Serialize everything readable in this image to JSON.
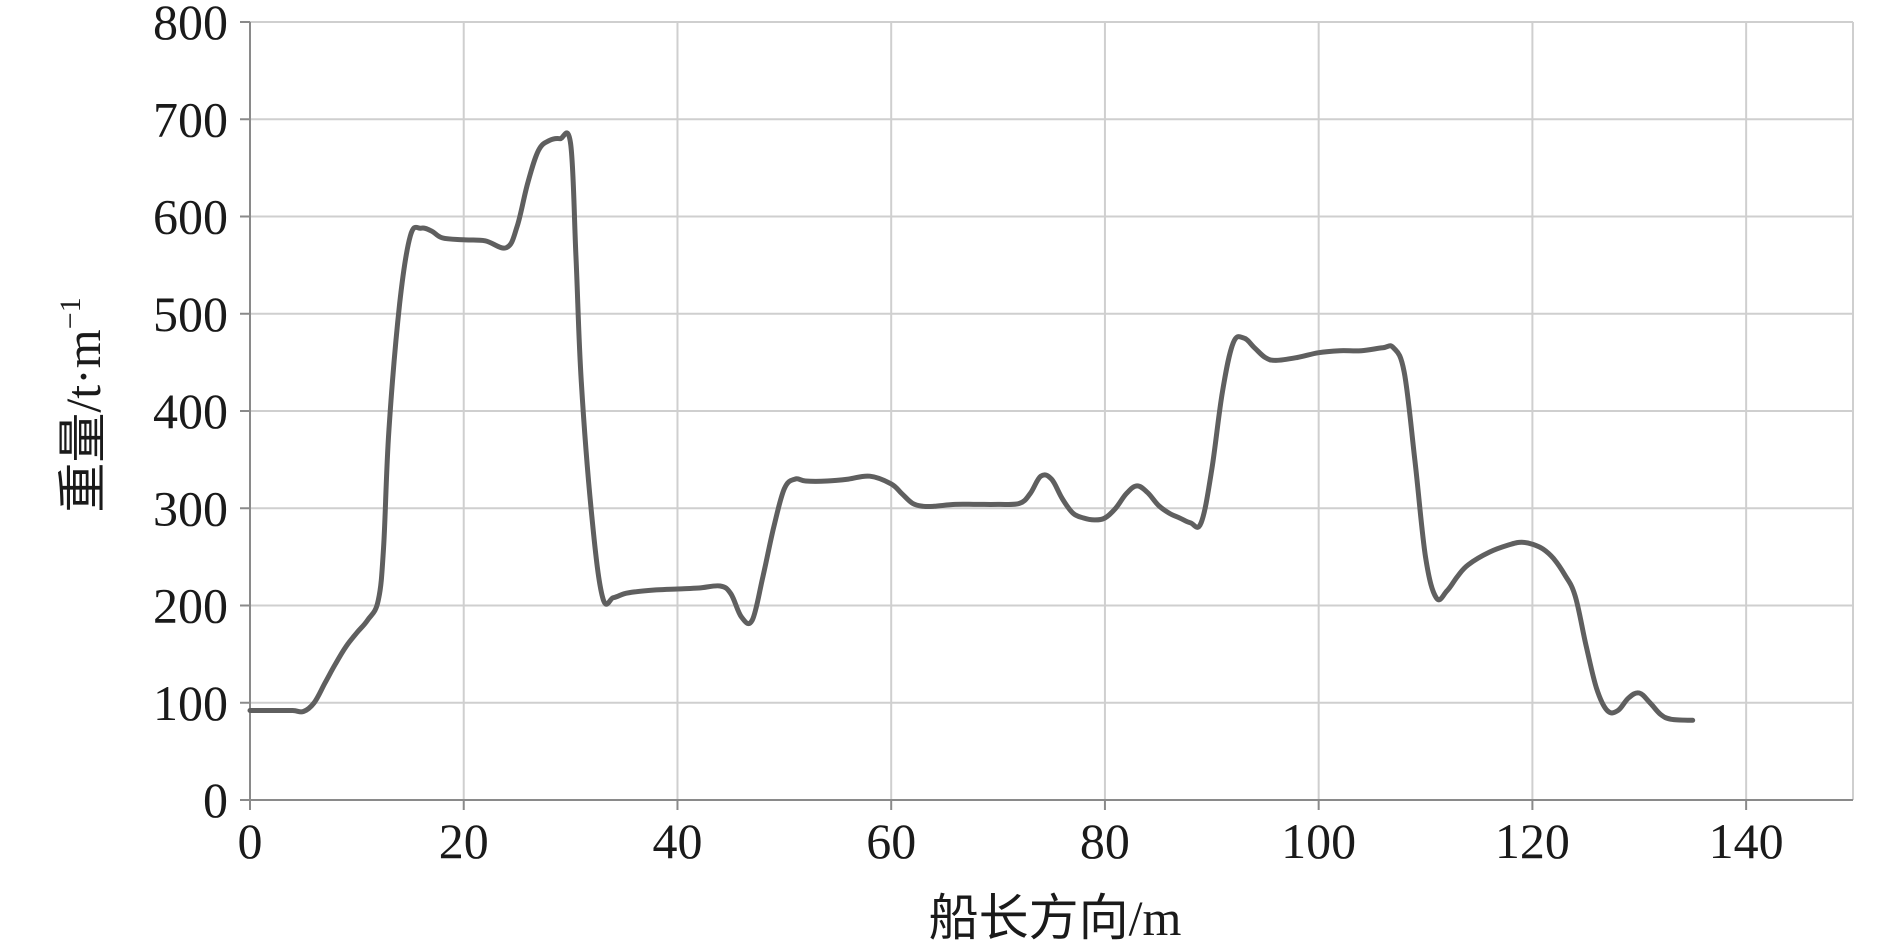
{
  "chart_data": {
    "type": "line",
    "title": "",
    "xlabel": "船长方向/m",
    "ylabel_main": "重量/t·m",
    "ylabel_sup": "−1",
    "xlim": [
      0,
      150
    ],
    "ylim": [
      0,
      800
    ],
    "x_ticks": [
      0,
      20,
      40,
      60,
      80,
      100,
      120,
      140
    ],
    "y_ticks": [
      0,
      100,
      200,
      300,
      400,
      500,
      600,
      700,
      800
    ],
    "grid": true,
    "colors": {
      "line": "#5f5f5f",
      "grid": "#cfcfcf",
      "axis": "#8a8a8a"
    },
    "series": [
      {
        "x": [
          0,
          2,
          4,
          5,
          6,
          7,
          8,
          9,
          10,
          11,
          12,
          12.5,
          13,
          14,
          15,
          16,
          17,
          18,
          20,
          22,
          24,
          25,
          26,
          27,
          28,
          29,
          30,
          30.5,
          31,
          32,
          33,
          34,
          35,
          36,
          38,
          40,
          42,
          44,
          45,
          46,
          47,
          48,
          49,
          50,
          51,
          52,
          54,
          56,
          58,
          60,
          61,
          62,
          63,
          64,
          66,
          68,
          70,
          72,
          73,
          74,
          75,
          76,
          77,
          78,
          79,
          80,
          81,
          82,
          83,
          84,
          85,
          86,
          87,
          88,
          89,
          90,
          91,
          92,
          93,
          94,
          95,
          96,
          98,
          100,
          102,
          104,
          106,
          107,
          108,
          109,
          110,
          111,
          112,
          113,
          114,
          116,
          118,
          119,
          120,
          121,
          122,
          123,
          124,
          125,
          126,
          127,
          128,
          129,
          130,
          131,
          132,
          133,
          135
        ],
        "y": [
          92,
          92,
          92,
          91,
          100,
          120,
          140,
          158,
          172,
          185,
          205,
          260,
          380,
          510,
          580,
          588,
          585,
          578,
          576,
          575,
          568,
          590,
          635,
          668,
          678,
          680,
          675,
          560,
          430,
          290,
          208,
          208,
          212,
          214,
          216,
          217,
          218,
          220,
          212,
          188,
          185,
          230,
          280,
          320,
          330,
          328,
          328,
          330,
          333,
          325,
          315,
          305,
          302,
          302,
          304,
          304,
          304,
          305,
          315,
          333,
          330,
          310,
          295,
          290,
          288,
          290,
          300,
          315,
          323,
          316,
          303,
          295,
          290,
          285,
          285,
          340,
          420,
          470,
          475,
          465,
          455,
          452,
          455,
          460,
          462,
          462,
          465,
          465,
          440,
          350,
          250,
          208,
          215,
          230,
          242,
          255,
          263,
          265,
          263,
          258,
          248,
          232,
          210,
          160,
          115,
          92,
          92,
          105,
          110,
          100,
          88,
          83,
          82
        ]
      }
    ]
  }
}
